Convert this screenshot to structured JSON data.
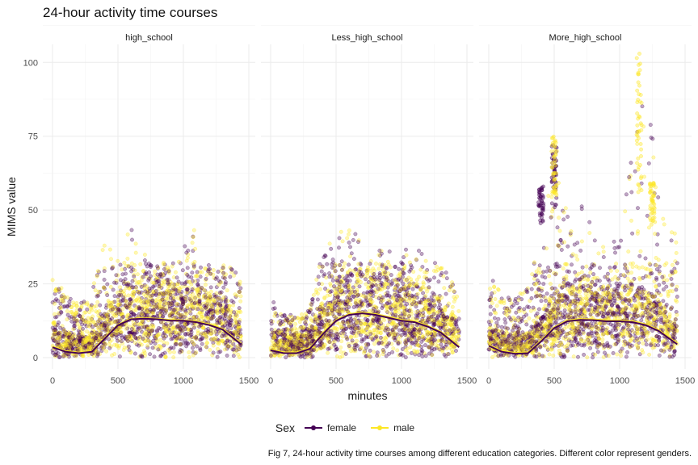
{
  "title": "24-hour activity time courses",
  "caption": "Fig 7, 24-hour activity time courses among different education categories. Different color represent genders.",
  "legend": {
    "title": "Sex",
    "entries": [
      {
        "label": "female",
        "color": "#440154"
      },
      {
        "label": "male",
        "color": "#FDE725"
      }
    ]
  },
  "chart_data": {
    "type": "scatter",
    "facets": [
      "high_school",
      "Less_high_school",
      "More_high_school"
    ],
    "xlabel": "minutes",
    "ylabel": "MIMS value",
    "xlim": [
      0,
      1440
    ],
    "ylim": [
      0,
      105
    ],
    "xticks": [
      0,
      500,
      1000,
      1500
    ],
    "xtick_labels": [
      "0",
      "500",
      "1000",
      "1500"
    ],
    "yticks": [
      0,
      25,
      50,
      75,
      100
    ],
    "grid": true,
    "legend_position": "bottom",
    "series_colors": {
      "female": "#440154",
      "male": "#FDE725"
    },
    "smooth": {
      "high_school": {
        "x": [
          0,
          100,
          200,
          300,
          400,
          500,
          600,
          700,
          800,
          900,
          1000,
          1100,
          1200,
          1300,
          1440
        ],
        "female": [
          3.5,
          2.0,
          1.5,
          2.0,
          6.5,
          11.0,
          13.0,
          13.2,
          13.0,
          12.5,
          12.5,
          12.0,
          11.0,
          9.5,
          4.5
        ],
        "male": [
          3.8,
          2.3,
          1.7,
          2.2,
          6.8,
          11.2,
          13.2,
          13.4,
          13.2,
          12.8,
          12.7,
          12.2,
          11.3,
          9.8,
          4.8
        ]
      },
      "Less_high_school": {
        "x": [
          0,
          100,
          200,
          300,
          400,
          500,
          600,
          700,
          800,
          900,
          1000,
          1100,
          1200,
          1300,
          1440
        ],
        "female": [
          2.5,
          1.5,
          1.5,
          3.0,
          8.0,
          12.5,
          14.5,
          15.0,
          14.5,
          13.5,
          12.5,
          12.0,
          10.5,
          8.5,
          3.5
        ],
        "male": [
          2.8,
          1.8,
          1.8,
          3.3,
          8.3,
          12.8,
          14.8,
          15.3,
          14.8,
          13.8,
          12.8,
          12.3,
          10.8,
          8.8,
          3.8
        ]
      },
      "More_high_school": {
        "x": [
          0,
          100,
          200,
          300,
          400,
          500,
          600,
          700,
          800,
          900,
          1000,
          1100,
          1200,
          1300,
          1440
        ],
        "female": [
          4.0,
          2.0,
          1.3,
          1.5,
          5.5,
          10.0,
          12.3,
          12.8,
          12.7,
          12.3,
          12.3,
          12.0,
          11.0,
          9.0,
          4.5
        ],
        "male": [
          4.3,
          2.3,
          1.6,
          1.8,
          5.8,
          10.3,
          12.6,
          13.1,
          13.0,
          12.6,
          12.6,
          12.3,
          11.3,
          9.3,
          4.8
        ]
      }
    },
    "scatter_envelope": {
      "x": [
        0,
        100,
        200,
        300,
        400,
        500,
        600,
        700,
        800,
        900,
        1000,
        1100,
        1200,
        1300,
        1440
      ],
      "high_school_max": [
        28,
        22,
        18,
        22,
        40,
        38,
        44,
        35,
        33,
        32,
        38,
        47,
        33,
        32,
        30
      ],
      "Less_high_school_max": [
        20,
        15,
        14,
        18,
        36,
        42,
        44,
        40,
        38,
        36,
        36,
        38,
        34,
        32,
        22
      ],
      "More_high_school_max": [
        28,
        22,
        20,
        25,
        42,
        74,
        48,
        52,
        45,
        40,
        45,
        70,
        104,
        60,
        40
      ]
    },
    "spikes": {
      "More_high_school": [
        {
          "x": 400,
          "y_min": 45,
          "y_max": 58,
          "series": "female"
        },
        {
          "x": 500,
          "y_min": 50,
          "y_max": 72,
          "series": "female"
        },
        {
          "x": 500,
          "y_min": 55,
          "y_max": 75,
          "series": "male"
        },
        {
          "x": 1150,
          "y_min": 55,
          "y_max": 103,
          "series": "male"
        },
        {
          "x": 1250,
          "y_min": 45,
          "y_max": 60,
          "series": "male"
        }
      ]
    }
  }
}
